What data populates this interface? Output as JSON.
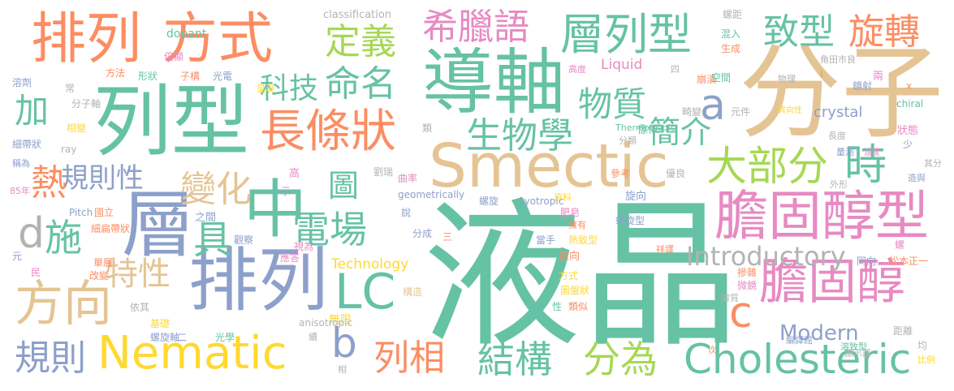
{
  "words": [
    {
      "text": "液晶",
      "color": "#66c2a5"
    },
    {
      "text": "Smectic",
      "color": "#e5c494"
    },
    {
      "text": "分子",
      "color": "#e5c494"
    },
    {
      "text": "導軸",
      "color": "#66c2a5"
    },
    {
      "text": "列型",
      "color": "#66c2a5"
    },
    {
      "text": "排列",
      "color": "#fc8d62"
    },
    {
      "text": "方式",
      "color": "#fc8d62"
    },
    {
      "text": "排列",
      "color": "#8da0cb"
    },
    {
      "text": "層",
      "color": "#8da0cb"
    },
    {
      "text": "中",
      "color": "#66c2a5"
    },
    {
      "text": "膽固醇型",
      "color": "#e78ac3"
    },
    {
      "text": "膽固醇",
      "color": "#e78ac3"
    },
    {
      "text": "Nematic",
      "color": "#ffd92f"
    },
    {
      "text": "Cholesteric",
      "color": "#66c2a5"
    },
    {
      "text": "層列型",
      "color": "#66c2a5"
    },
    {
      "text": "長條狀",
      "color": "#fc8d62"
    },
    {
      "text": "方向",
      "color": "#e5c494"
    },
    {
      "text": "LC",
      "color": "#66c2a5"
    },
    {
      "text": "希臘語",
      "color": "#e78ac3"
    },
    {
      "text": "致型",
      "color": "#66c2a5"
    },
    {
      "text": "旋轉",
      "color": "#fc8d62"
    },
    {
      "text": "電場",
      "color": "#66c2a5"
    },
    {
      "text": "大部分",
      "color": "#a6d854"
    },
    {
      "text": "結構",
      "color": "#66c2a5"
    },
    {
      "text": "列相",
      "color": "#fc8d62"
    },
    {
      "text": "分為",
      "color": "#a6d854"
    },
    {
      "text": "規則",
      "color": "#8da0cb"
    },
    {
      "text": "物質",
      "color": "#66c2a5"
    },
    {
      "text": "命名",
      "color": "#66c2a5"
    },
    {
      "text": "定義",
      "color": "#a6d854"
    },
    {
      "text": "生物學",
      "color": "#66c2a5"
    },
    {
      "text": "變化",
      "color": "#e5c494"
    },
    {
      "text": "特性",
      "color": "#e5c494"
    },
    {
      "text": "時",
      "color": "#66c2a5"
    },
    {
      "text": "具",
      "color": "#66c2a5"
    },
    {
      "text": "規則性",
      "color": "#8da0cb"
    },
    {
      "text": "科技",
      "color": "#66c2a5"
    },
    {
      "text": "加",
      "color": "#66c2a5"
    },
    {
      "text": "熱",
      "color": "#fc8d62"
    },
    {
      "text": "施",
      "color": "#66c2a5"
    },
    {
      "text": "Introductory",
      "color": "#b3b3b3"
    },
    {
      "text": "Modern",
      "color": "#8da0cb"
    },
    {
      "text": "a",
      "color": "#8da0cb"
    },
    {
      "text": "b",
      "color": "#8da0cb"
    },
    {
      "text": "c",
      "color": "#fc8d62"
    },
    {
      "text": "d",
      "color": "#b3b3b3"
    },
    {
      "text": "圖",
      "color": "#66c2a5"
    },
    {
      "text": "簡介",
      "color": "#66c2a5"
    },
    {
      "text": "crystal",
      "color": "#8da0cb"
    },
    {
      "text": "Liquid",
      "color": "#e78ac3"
    },
    {
      "text": "Technology",
      "color": "#ffd92f"
    },
    {
      "text": "classification",
      "color": "#b3b3b3"
    },
    {
      "text": "dopant",
      "color": "#66c2a5"
    },
    {
      "text": "資料",
      "color": "#e78ac3"
    },
    {
      "text": "旋向",
      "color": "#fc8d62"
    },
    {
      "text": "螺旋型",
      "color": "#66c2a5"
    },
    {
      "text": "無限",
      "color": "#fc8d62"
    },
    {
      "text": "狀態",
      "color": "#8da0cb"
    },
    {
      "text": "之間",
      "color": "#8da0cb"
    },
    {
      "text": "劉瑞",
      "color": "#b3b3b3"
    },
    {
      "text": "倍顯",
      "color": "#b3b3b3"
    },
    {
      "text": "方法",
      "color": "#ffd92f"
    },
    {
      "text": "形狀",
      "color": "#8da0cb"
    },
    {
      "text": "子構",
      "color": "#b3b3b3"
    },
    {
      "text": "光電",
      "color": "#8da0cb"
    },
    {
      "text": "溶劑",
      "color": "#e78ac3"
    },
    {
      "text": "常",
      "color": "#ffd92f"
    },
    {
      "text": "分子軸",
      "color": "#b3b3b3"
    },
    {
      "text": "相變",
      "color": "#e78ac3"
    },
    {
      "text": "細帶狀",
      "color": "#8da0cb"
    },
    {
      "text": "ray",
      "color": "#b3b3b3"
    },
    {
      "text": "稱為",
      "color": "#e78ac3"
    },
    {
      "text": "85年",
      "color": "#8da0cb"
    },
    {
      "text": "呈現",
      "color": "#66c2a5"
    },
    {
      "text": "類",
      "color": "#b3b3b3"
    },
    {
      "text": "高",
      "color": "#66c2a5"
    },
    {
      "text": "示",
      "color": "#fc8d62"
    },
    {
      "text": "曲率",
      "color": "#b3b3b3"
    },
    {
      "text": "geometrically",
      "color": "#8da0cb"
    },
    {
      "text": "Thermotropic",
      "color": "#ffd92f"
    },
    {
      "text": "分類",
      "color": "#8da0cb"
    },
    {
      "text": "像似",
      "color": "#8da0cb"
    },
    {
      "text": "參考",
      "color": "#e78ac3"
    },
    {
      "text": "優良",
      "color": "#fc8d62"
    },
    {
      "text": "Lyotropic",
      "color": "#8da0cb"
    },
    {
      "text": "螺旋",
      "color": "#ffd92f"
    },
    {
      "text": "肥皂",
      "color": "#8da0cb"
    },
    {
      "text": "擁有",
      "color": "#fc8d62"
    },
    {
      "text": "熱致型",
      "color": "#fc8d62"
    },
    {
      "text": "當手",
      "color": "#8da0cb"
    },
    {
      "text": "祥譯",
      "color": "#fc8d62"
    },
    {
      "text": "取向",
      "color": "#fc8d62"
    },
    {
      "text": "Pitch",
      "color": "#8da0cb"
    },
    {
      "text": "國立",
      "color": "#8da0cb"
    },
    {
      "text": "細扁帶狀",
      "color": "#e78ac3"
    },
    {
      "text": "元",
      "color": "#fc8d62"
    },
    {
      "text": "民",
      "color": "#fc8d62"
    },
    {
      "text": "單層",
      "color": "#8da0cb"
    },
    {
      "text": "改變",
      "color": "#e78ac3"
    },
    {
      "text": "觀察",
      "color": "#e78ac3"
    },
    {
      "text": "應答",
      "color": "#8da0cb"
    },
    {
      "text": "視為",
      "color": "#fc8d62"
    },
    {
      "text": "分成",
      "color": "#8da0cb"
    },
    {
      "text": "三",
      "color": "#ffd92f"
    },
    {
      "text": "說",
      "color": "#ffd92f"
    },
    {
      "text": "方式",
      "color": "#e5c494"
    },
    {
      "text": "圖盤狀",
      "color": "#b3b3b3"
    },
    {
      "text": "構造",
      "color": "#ffd92f"
    },
    {
      "text": "依其",
      "color": "#8da0cb"
    },
    {
      "text": "基礎",
      "color": "#8da0cb"
    },
    {
      "text": "螺旋軸",
      "color": "#66c2a5"
    },
    {
      "text": "二",
      "color": "#b3b3b3"
    },
    {
      "text": "光學",
      "color": "#b3b3b3"
    },
    {
      "text": "anisotropic",
      "color": "#ffd92f"
    },
    {
      "text": "續",
      "color": "#b3b3b3"
    },
    {
      "text": "相",
      "color": "#66c2a5"
    },
    {
      "text": "性",
      "color": "#fc8d62"
    },
    {
      "text": "類似",
      "color": "#b3b3b3"
    },
    {
      "text": "螺距",
      "color": "#66c2a5"
    },
    {
      "text": "混入",
      "color": "#fc8d62"
    },
    {
      "text": "生成",
      "color": "#e78ac3"
    },
    {
      "text": "高度",
      "color": "#b3b3b3"
    },
    {
      "text": "四",
      "color": "#b3b3b3"
    },
    {
      "text": "角田市良",
      "color": "#fc8d62"
    },
    {
      "text": "I",
      "color": "#e78ac3"
    },
    {
      "text": "兩",
      "color": "#fc8d62"
    },
    {
      "text": "崩潰",
      "color": "#66c2a5"
    },
    {
      "text": "空間",
      "color": "#b3b3b3"
    },
    {
      "text": "物理",
      "color": "#8da0cb"
    },
    {
      "text": "鏡射",
      "color": "#fc8d62"
    },
    {
      "text": "x",
      "color": "#b3b3b3"
    },
    {
      "text": "畸變",
      "color": "#b3b3b3"
    },
    {
      "text": "元件",
      "color": "#ffd92f"
    },
    {
      "text": "異向性",
      "color": "#66c2a5"
    },
    {
      "text": "chiral",
      "color": "#e78ac3"
    },
    {
      "text": "長度",
      "color": "#b3b3b3"
    },
    {
      "text": "少",
      "color": "#8da0cb"
    },
    {
      "text": "量測",
      "color": "#8da0cb"
    },
    {
      "text": "溫度",
      "color": "#e78ac3"
    },
    {
      "text": "其分",
      "color": "#b3b3b3"
    },
    {
      "text": "外形",
      "color": "#b3b3b3"
    },
    {
      "text": "造與",
      "color": "#8da0cb"
    },
    {
      "text": "螺",
      "color": "#e78ac3"
    },
    {
      "text": "同向",
      "color": "#8da0cb"
    },
    {
      "text": "松本正一",
      "color": "#fc8d62"
    },
    {
      "text": "摻雜",
      "color": "#fc8d62"
    },
    {
      "text": "微鏡",
      "color": "#e78ac3"
    },
    {
      "text": "溶質",
      "color": "#b3b3b3"
    },
    {
      "text": "距離",
      "color": "#b3b3b3"
    },
    {
      "text": "編譯館",
      "color": "#8da0cb"
    },
    {
      "text": "顯示器",
      "color": "#b3b3b3"
    },
    {
      "text": "溶致型",
      "color": "#66c2a5"
    },
    {
      "text": "次",
      "color": "#fc8d62"
    },
    {
      "text": "均",
      "color": "#b3b3b3"
    },
    {
      "text": "比例",
      "color": "#ffd92f"
    }
  ]
}
